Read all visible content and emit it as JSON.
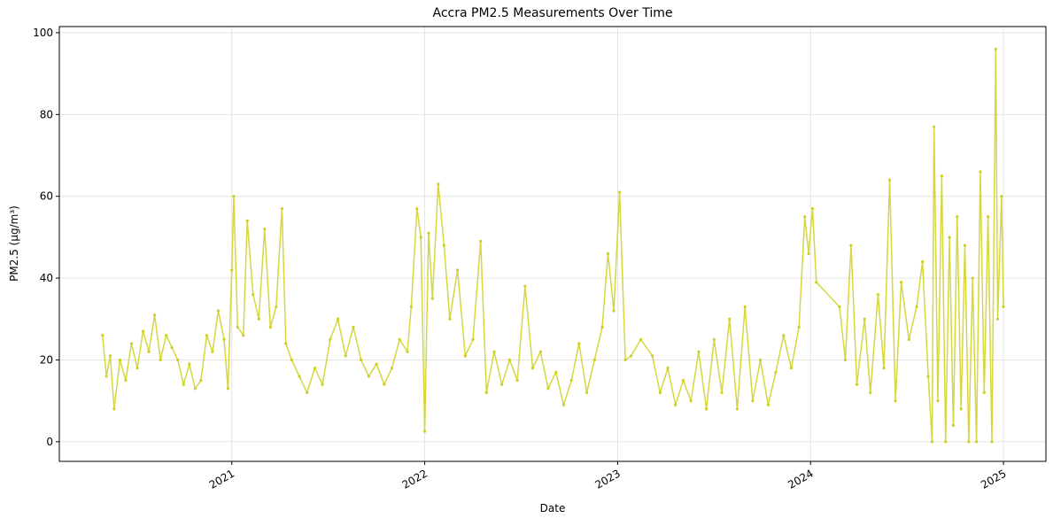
{
  "chart_data": {
    "type": "line",
    "title": "Accra PM2.5 Measurements Over Time",
    "x_label": "Date",
    "y_label": "PM2.5 (µg/m³)",
    "x": [
      2020.33,
      2020.35,
      2020.37,
      2020.39,
      2020.42,
      2020.45,
      2020.48,
      2020.51,
      2020.54,
      2020.57,
      2020.6,
      2020.63,
      2020.66,
      2020.69,
      2020.72,
      2020.75,
      2020.78,
      2020.81,
      2020.84,
      2020.87,
      2020.9,
      2020.93,
      2020.96,
      2020.98,
      2021.0,
      2021.01,
      2021.03,
      2021.06,
      2021.08,
      2021.11,
      2021.14,
      2021.17,
      2021.2,
      2021.23,
      2021.26,
      2021.28,
      2021.31,
      2021.35,
      2021.39,
      2021.43,
      2021.47,
      2021.51,
      2021.55,
      2021.59,
      2021.63,
      2021.67,
      2021.71,
      2021.75,
      2021.79,
      2021.83,
      2021.87,
      2021.91,
      2021.93,
      2021.96,
      2021.98,
      2022.0,
      2022.02,
      2022.04,
      2022.07,
      2022.1,
      2022.13,
      2022.17,
      2022.21,
      2022.25,
      2022.29,
      2022.32,
      2022.36,
      2022.4,
      2022.44,
      2022.48,
      2022.52,
      2022.56,
      2022.6,
      2022.64,
      2022.68,
      2022.72,
      2022.76,
      2022.8,
      2022.84,
      2022.88,
      2022.92,
      2022.95,
      2022.98,
      2023.01,
      2023.04,
      2023.07,
      2023.12,
      2023.18,
      2023.22,
      2023.26,
      2023.3,
      2023.34,
      2023.38,
      2023.42,
      2023.46,
      2023.5,
      2023.54,
      2023.58,
      2023.62,
      2023.66,
      2023.7,
      2023.74,
      2023.78,
      2023.82,
      2023.86,
      2023.9,
      2023.94,
      2023.97,
      2023.99,
      2024.01,
      2024.03,
      2024.15,
      2024.18,
      2024.21,
      2024.24,
      2024.28,
      2024.31,
      2024.35,
      2024.38,
      2024.41,
      2024.44,
      2024.47,
      2024.51,
      2024.55,
      2024.58,
      2024.61,
      2024.63,
      2024.64,
      2024.66,
      2024.68,
      2024.7,
      2024.72,
      2024.74,
      2024.76,
      2024.78,
      2024.8,
      2024.82,
      2024.84,
      2024.86,
      2024.88,
      2024.9,
      2024.92,
      2024.94,
      2024.96,
      2024.97,
      2024.99,
      2025.0
    ],
    "series": [
      {
        "color": "#cfcf1f",
        "values": [
          26,
          16,
          21,
          8,
          20,
          15,
          24,
          18,
          27,
          22,
          31,
          20,
          26,
          23,
          20,
          14,
          19,
          13,
          15,
          26,
          22,
          32,
          25,
          13,
          42,
          60,
          28,
          26,
          54,
          36,
          30,
          52,
          28,
          33,
          57,
          24,
          20,
          16,
          12,
          18,
          14,
          25,
          30,
          21,
          28,
          20,
          16,
          19,
          14,
          18,
          25,
          22,
          33,
          57,
          50,
          2.5,
          51,
          35,
          63,
          48,
          30,
          42,
          21,
          25,
          49,
          12,
          22,
          14,
          20,
          15,
          38,
          18,
          22,
          13,
          17,
          9,
          15,
          24,
          12,
          20,
          28,
          46,
          32,
          61,
          20,
          21,
          25,
          21,
          12,
          18,
          9,
          15,
          10,
          22,
          8,
          25,
          12,
          30,
          8,
          33,
          10,
          20,
          9,
          17,
          26,
          18,
          28,
          55,
          46,
          57,
          39,
          33,
          20,
          48,
          14,
          30,
          12,
          36,
          18,
          64,
          10,
          39,
          25,
          33,
          44,
          16,
          0,
          77,
          10,
          65,
          0,
          50,
          4,
          55,
          8,
          48,
          0,
          40,
          0,
          66,
          12,
          55,
          0,
          96,
          30,
          60,
          33
        ]
      }
    ],
    "xlim": [
      2020.106,
      2025.22
    ],
    "xticks": [
      2021,
      2022,
      2023,
      2024,
      2025
    ],
    "ylim": [
      -4.8,
      101.5
    ],
    "yticks": [
      0,
      20,
      40,
      60,
      80,
      100
    ],
    "grid": true
  }
}
